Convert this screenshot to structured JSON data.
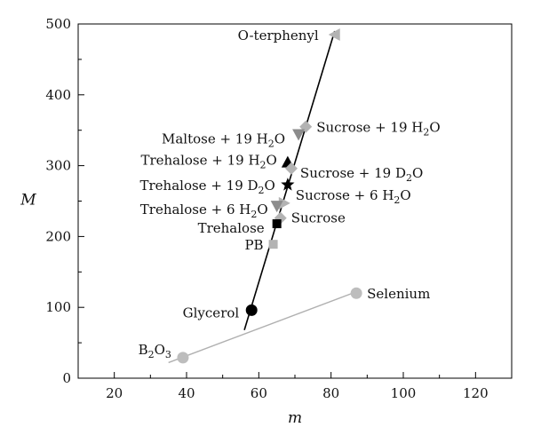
{
  "chart_data": {
    "type": "scatter",
    "xlabel": "m",
    "ylabel": "M",
    "xlim": [
      10,
      130
    ],
    "ylim": [
      0,
      500
    ],
    "xticks": [
      20,
      40,
      60,
      80,
      100,
      120
    ],
    "yticks": [
      0,
      100,
      200,
      300,
      400,
      500
    ],
    "xtick_labels": [
      "20",
      "40",
      "60",
      "80",
      "100",
      "120"
    ],
    "ytick_labels": [
      "0",
      "100",
      "200",
      "300",
      "400",
      "500"
    ],
    "lines": [
      {
        "from": [
          56,
          68
        ],
        "to": [
          81,
          490
        ],
        "color": "#000000"
      },
      {
        "from": [
          35,
          22
        ],
        "to": [
          87,
          122
        ],
        "color": "#b0b0b0"
      }
    ],
    "points": [
      {
        "label": "O-terpheny",
        "label_suffix": "l",
        "x": 81,
        "y": 485,
        "marker": "triangle-left",
        "color": "#b3b3b3"
      },
      {
        "label": "Sucrose + 19 H",
        "sub": "2",
        "label_suffix": "O",
        "x": 73,
        "y": 355,
        "marker": "diamond",
        "color": "#b3b3b3"
      },
      {
        "label": "Maltose + 19 H",
        "sub": "2",
        "label_suffix": "O",
        "x": 71,
        "y": 344,
        "marker": "triangle-down",
        "color": "#8c8c8c"
      },
      {
        "label": "Trehalose + 19 H",
        "sub": "2",
        "label_suffix": "O",
        "x": 68,
        "y": 305,
        "marker": "triangle-up",
        "color": "#000000"
      },
      {
        "label": "Sucrose + 19 D",
        "sub": "2",
        "label_suffix": "O",
        "x": 69,
        "y": 296,
        "marker": "diamond",
        "color": "#b3b3b3"
      },
      {
        "label": "Trehalose + 19 D",
        "sub": "2",
        "label_suffix": "O",
        "x": 68,
        "y": 273,
        "marker": "star",
        "color": "#000000"
      },
      {
        "label": "Sucrose + 6 H",
        "sub": "2",
        "label_suffix": "O",
        "x": 67,
        "y": 247,
        "marker": "triangle-right",
        "color": "#b3b3b3"
      },
      {
        "label": "Trehalose + 6 H",
        "sub": "2",
        "label_suffix": "O",
        "x": 65,
        "y": 243,
        "marker": "triangle-down",
        "color": "#8c8c8c"
      },
      {
        "label": "Sucrose",
        "sub": "",
        "label_suffix": "",
        "x": 66,
        "y": 226,
        "marker": "diamond",
        "color": "#b3b3b3"
      },
      {
        "label": "Trehalose",
        "sub": "",
        "label_suffix": "",
        "x": 65,
        "y": 218,
        "marker": "square",
        "color": "#000000"
      },
      {
        "label": "PB",
        "sub": "",
        "label_suffix": "",
        "x": 64,
        "y": 189,
        "marker": "square",
        "color": "#b3b3b3"
      },
      {
        "label": "Glycerol",
        "sub": "",
        "label_suffix": "",
        "x": 58,
        "y": 96,
        "marker": "circle",
        "color": "#000000"
      },
      {
        "label": "Selenium",
        "sub": "",
        "label_suffix": "",
        "x": 87,
        "y": 120,
        "marker": "circle",
        "color": "#bdbdbd"
      },
      {
        "label": "B",
        "sub": "2",
        "label_suffix": "O3",
        "x": 39,
        "y": 29,
        "marker": "circle",
        "color": "#bdbdbd"
      }
    ]
  }
}
